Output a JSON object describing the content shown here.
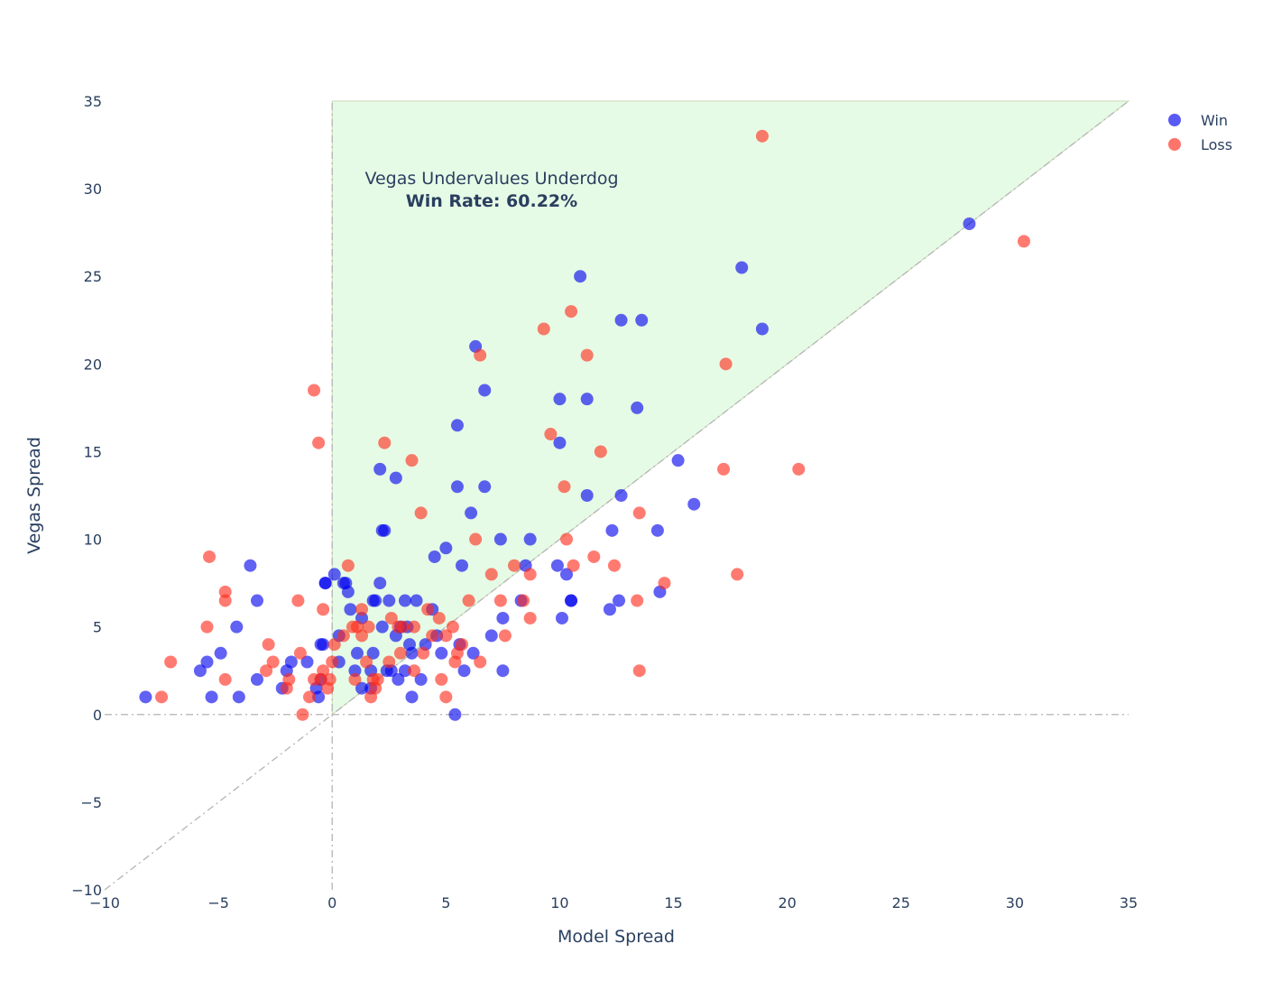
{
  "chart_data": {
    "type": "scatter",
    "xlabel": "Model Spread",
    "ylabel": "Vegas Spread",
    "xlim": [
      -10,
      35
    ],
    "ylim": [
      -10,
      35
    ],
    "x_ticks": [
      "−10",
      "−5",
      "0",
      "5",
      "10",
      "15",
      "20",
      "25",
      "30",
      "35"
    ],
    "y_ticks": [
      "−10",
      "−5",
      "0",
      "5",
      "10",
      "15",
      "20",
      "25",
      "30",
      "35"
    ],
    "legend_position": "top-right",
    "annotation": {
      "line1": "Vegas Undervalues Underdog",
      "line2": "Win Rate: 60.22%"
    },
    "region_color": "#e6fbe6",
    "series": [
      {
        "name": "Win",
        "color": "#0000ee",
        "points": [
          [
            -8.2,
            1
          ],
          [
            -5.3,
            1
          ],
          [
            -4.1,
            1
          ],
          [
            -5.8,
            2.5
          ],
          [
            -5.5,
            3
          ],
          [
            -4.9,
            3.5
          ],
          [
            -4.2,
            5
          ],
          [
            -3.6,
            8.5
          ],
          [
            -3.3,
            6.5
          ],
          [
            -3.3,
            2
          ],
          [
            -2.2,
            1.5
          ],
          [
            -2,
            2.5
          ],
          [
            -1.8,
            3
          ],
          [
            -1.1,
            3
          ],
          [
            -0.7,
            1.5
          ],
          [
            -0.6,
            1
          ],
          [
            -0.5,
            4
          ],
          [
            -0.4,
            4
          ],
          [
            -0.5,
            2
          ],
          [
            -0.3,
            7.5
          ],
          [
            -0.3,
            7.5
          ],
          [
            0.1,
            8
          ],
          [
            0.3,
            4.5
          ],
          [
            0.3,
            3
          ],
          [
            0.5,
            7.5
          ],
          [
            0.6,
            7.5
          ],
          [
            0.7,
            7
          ],
          [
            0.8,
            6
          ],
          [
            1,
            2.5
          ],
          [
            1.1,
            3.5
          ],
          [
            1.3,
            5.5
          ],
          [
            1.3,
            1.5
          ],
          [
            1.7,
            1.5
          ],
          [
            1.7,
            2.5
          ],
          [
            1.8,
            3.5
          ],
          [
            1.8,
            6.5
          ],
          [
            1.9,
            6.5
          ],
          [
            2.1,
            14
          ],
          [
            2.1,
            7.5
          ],
          [
            2.2,
            10.5
          ],
          [
            2.2,
            5
          ],
          [
            2.3,
            10.5
          ],
          [
            2.4,
            2.5
          ],
          [
            2.5,
            6.5
          ],
          [
            2.6,
            2.5
          ],
          [
            2.8,
            4.5
          ],
          [
            2.8,
            13.5
          ],
          [
            2.9,
            2
          ],
          [
            3,
            5
          ],
          [
            3.2,
            2.5
          ],
          [
            3.2,
            6.5
          ],
          [
            3.3,
            5
          ],
          [
            3.4,
            4
          ],
          [
            3.5,
            1
          ],
          [
            3.5,
            3.5
          ],
          [
            3.7,
            6.5
          ],
          [
            3.9,
            2
          ],
          [
            4.1,
            4
          ],
          [
            4.4,
            6
          ],
          [
            4.5,
            9
          ],
          [
            4.6,
            4.5
          ],
          [
            4.8,
            3.5
          ],
          [
            5,
            9.5
          ],
          [
            5.4,
            0
          ],
          [
            5.5,
            16.5
          ],
          [
            5.5,
            13
          ],
          [
            5.6,
            4
          ],
          [
            5.7,
            8.5
          ],
          [
            5.8,
            2.5
          ],
          [
            6.1,
            11.5
          ],
          [
            6.2,
            3.5
          ],
          [
            6.3,
            21
          ],
          [
            6.7,
            13
          ],
          [
            6.7,
            18.5
          ],
          [
            7,
            4.5
          ],
          [
            7.4,
            10
          ],
          [
            7.5,
            5.5
          ],
          [
            7.5,
            2.5
          ],
          [
            8.3,
            6.5
          ],
          [
            8.5,
            8.5
          ],
          [
            8.7,
            10
          ],
          [
            9.9,
            8.5
          ],
          [
            10,
            18
          ],
          [
            10,
            15.5
          ],
          [
            10.1,
            5.5
          ],
          [
            10.3,
            8
          ],
          [
            10.5,
            6.5
          ],
          [
            10.5,
            6.5
          ],
          [
            10.9,
            25
          ],
          [
            11.2,
            12.5
          ],
          [
            11.2,
            18
          ],
          [
            12.2,
            6
          ],
          [
            12.3,
            10.5
          ],
          [
            12.6,
            6.5
          ],
          [
            12.7,
            12.5
          ],
          [
            12.7,
            22.5
          ],
          [
            13.4,
            17.5
          ],
          [
            13.6,
            22.5
          ],
          [
            14.3,
            10.5
          ],
          [
            14.4,
            7
          ],
          [
            15.2,
            14.5
          ],
          [
            15.9,
            12
          ],
          [
            18,
            25.5
          ],
          [
            18.9,
            22
          ],
          [
            28,
            28
          ]
        ]
      },
      {
        "name": "Loss",
        "color": "#ff2a1a",
        "points": [
          [
            -7.5,
            1
          ],
          [
            -7.1,
            3
          ],
          [
            -5.4,
            9
          ],
          [
            -5.5,
            5
          ],
          [
            -4.7,
            7
          ],
          [
            -4.7,
            6.5
          ],
          [
            -4.7,
            2
          ],
          [
            -2.9,
            2.5
          ],
          [
            -2.8,
            4
          ],
          [
            -2.6,
            3
          ],
          [
            -2,
            1.5
          ],
          [
            -1.9,
            2
          ],
          [
            -1.5,
            6.5
          ],
          [
            -1.4,
            3.5
          ],
          [
            -1.3,
            0
          ],
          [
            -1,
            1
          ],
          [
            -0.8,
            18.5
          ],
          [
            -0.8,
            2
          ],
          [
            -0.6,
            15.5
          ],
          [
            -0.5,
            2
          ],
          [
            -0.4,
            6
          ],
          [
            -0.4,
            2.5
          ],
          [
            -0.2,
            1.5
          ],
          [
            -0.1,
            2
          ],
          [
            0,
            3
          ],
          [
            0.1,
            4
          ],
          [
            0.5,
            4.5
          ],
          [
            0.7,
            8.5
          ],
          [
            0.9,
            5
          ],
          [
            1,
            2
          ],
          [
            1.1,
            5
          ],
          [
            1.3,
            4.5
          ],
          [
            1.3,
            6
          ],
          [
            1.5,
            3
          ],
          [
            1.6,
            5
          ],
          [
            1.7,
            1
          ],
          [
            1.8,
            2
          ],
          [
            1.9,
            1.5
          ],
          [
            2,
            2
          ],
          [
            2.3,
            15.5
          ],
          [
            2.5,
            3
          ],
          [
            2.6,
            5.5
          ],
          [
            2.9,
            5
          ],
          [
            3,
            3.5
          ],
          [
            3.1,
            5
          ],
          [
            3.5,
            14.5
          ],
          [
            3.6,
            2.5
          ],
          [
            3.6,
            5
          ],
          [
            3.9,
            11.5
          ],
          [
            4,
            3.5
          ],
          [
            4.2,
            6
          ],
          [
            4.4,
            4.5
          ],
          [
            4.7,
            5.5
          ],
          [
            4.8,
            2
          ],
          [
            5,
            4.5
          ],
          [
            5,
            1
          ],
          [
            5.3,
            5
          ],
          [
            5.4,
            3
          ],
          [
            5.5,
            3.5
          ],
          [
            5.7,
            4
          ],
          [
            6,
            6.5
          ],
          [
            6.3,
            10
          ],
          [
            6.5,
            20.5
          ],
          [
            6.5,
            3
          ],
          [
            7,
            8
          ],
          [
            7.4,
            6.5
          ],
          [
            7.6,
            4.5
          ],
          [
            8,
            8.5
          ],
          [
            8.4,
            6.5
          ],
          [
            8.7,
            8
          ],
          [
            8.7,
            5.5
          ],
          [
            9.3,
            22
          ],
          [
            9.6,
            16
          ],
          [
            10.2,
            13
          ],
          [
            10.3,
            10
          ],
          [
            10.5,
            23
          ],
          [
            10.6,
            8.5
          ],
          [
            11.2,
            20.5
          ],
          [
            11.5,
            9
          ],
          [
            11.8,
            15
          ],
          [
            12.4,
            8.5
          ],
          [
            13.4,
            6.5
          ],
          [
            13.5,
            11.5
          ],
          [
            13.5,
            2.5
          ],
          [
            14.6,
            7.5
          ],
          [
            17.2,
            14
          ],
          [
            17.3,
            20
          ],
          [
            17.8,
            8
          ],
          [
            18.9,
            33
          ],
          [
            20.5,
            14
          ],
          [
            30.4,
            27
          ]
        ]
      }
    ]
  }
}
